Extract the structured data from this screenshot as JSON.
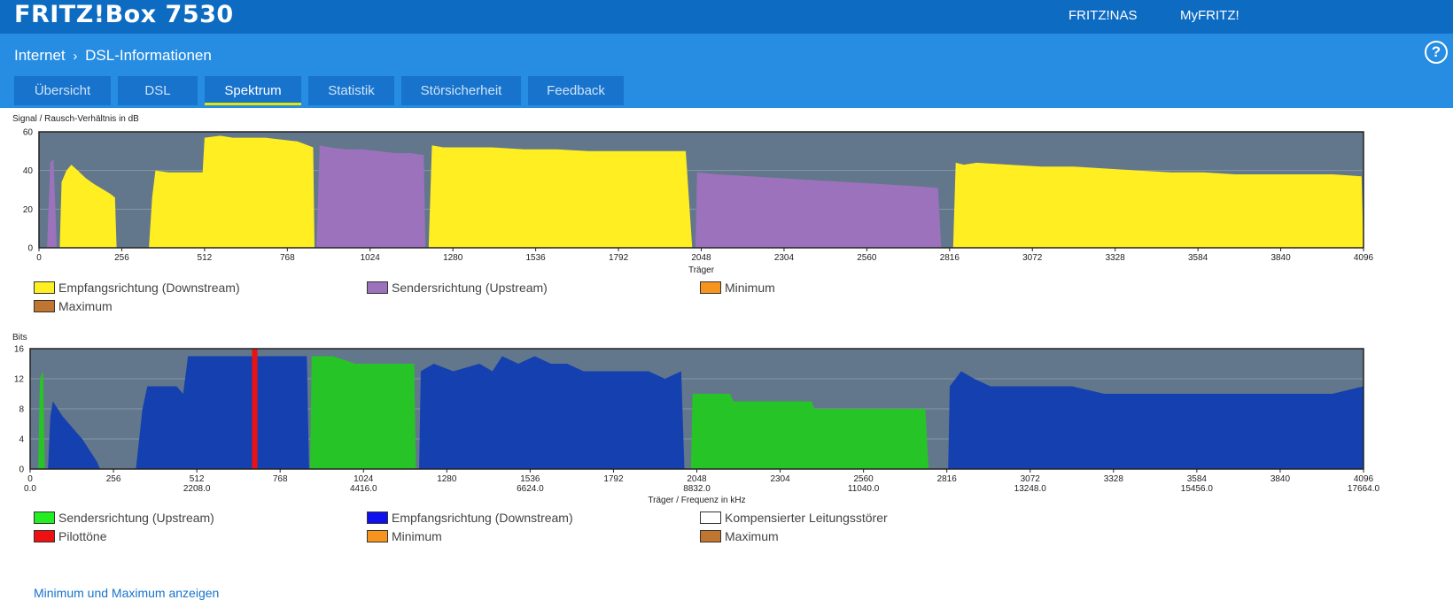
{
  "header": {
    "brand": "FRITZ!Box 7530",
    "links": [
      "FRITZ!NAS",
      "MyFRITZ!"
    ],
    "help": "?"
  },
  "breadcrumb": {
    "parent": "Internet",
    "separator": "›",
    "current": "DSL-Informationen"
  },
  "tabs": [
    {
      "label": "Übersicht",
      "active": false
    },
    {
      "label": "DSL",
      "active": false
    },
    {
      "label": "Spektrum",
      "active": true
    },
    {
      "label": "Statistik",
      "active": false
    },
    {
      "label": "Störsicherheit",
      "active": false
    },
    {
      "label": "Feedback",
      "active": false
    }
  ],
  "colors": {
    "plot_bg": "#62778b",
    "downstream": "#ffee22",
    "upstream": "#9b72bb",
    "bits_down": "#1540b0",
    "bits_up": "#27c427",
    "pilot": "#ee1111",
    "minimum": "#f7941d",
    "maximum": "#c07530",
    "accent": "#0d6bc2"
  },
  "chart_data": [
    {
      "type": "area",
      "ylabel": "Signal / Rausch-Verhältnis in dB",
      "xlabel": "Träger",
      "ylim": [
        0,
        60
      ],
      "xlim": [
        0,
        4096
      ],
      "yticks": [
        "0",
        "20",
        "40",
        "60"
      ],
      "xticks": [
        "0",
        "256",
        "512",
        "768",
        "1024",
        "1280",
        "1536",
        "1792",
        "2048",
        "2304",
        "2560",
        "2816",
        "3072",
        "3328",
        "3584",
        "3840",
        "4096"
      ],
      "legend": [
        "Empfangsrichtung (Downstream)",
        "Sendersrichtung (Upstream)",
        "Minimum",
        "Maximum"
      ],
      "series": [
        {
          "name": "Sendersrichtung (Upstream)",
          "color": "upstream",
          "segments": [
            [
              [
                25,
                0
              ],
              [
                35,
                44
              ],
              [
                45,
                46
              ],
              [
                55,
                0
              ]
            ],
            [
              [
                858,
                0
              ],
              [
                868,
                53
              ],
              [
                900,
                52
              ],
              [
                950,
                51
              ],
              [
                1000,
                51
              ],
              [
                1050,
                50
              ],
              [
                1100,
                49
              ],
              [
                1150,
                49
              ],
              [
                1190,
                48
              ],
              [
                1195,
                0
              ]
            ],
            [
              [
                2030,
                0
              ],
              [
                2035,
                39
              ],
              [
                2100,
                38
              ],
              [
                2200,
                37
              ],
              [
                2300,
                36
              ],
              [
                2400,
                35
              ],
              [
                2500,
                34
              ],
              [
                2600,
                33
              ],
              [
                2700,
                32
              ],
              [
                2780,
                31
              ],
              [
                2790,
                0
              ]
            ]
          ]
        },
        {
          "name": "Empfangsrichtung (Downstream)",
          "color": "downstream",
          "segments": [
            [
              [
                64,
                0
              ],
              [
                70,
                34
              ],
              [
                85,
                40
              ],
              [
                100,
                43
              ],
              [
                120,
                40
              ],
              [
                145,
                36
              ],
              [
                170,
                33
              ],
              [
                190,
                31
              ],
              [
                220,
                28
              ],
              [
                235,
                26
              ],
              [
                240,
                0
              ]
            ],
            [
              [
                340,
                0
              ],
              [
                350,
                26
              ],
              [
                360,
                40
              ],
              [
                400,
                39
              ],
              [
                450,
                39
              ],
              [
                506,
                39
              ],
              [
                512,
                57
              ],
              [
                560,
                58
              ],
              [
                600,
                57
              ],
              [
                650,
                57
              ],
              [
                700,
                57
              ],
              [
                750,
                56
              ],
              [
                800,
                55
              ],
              [
                848,
                52
              ],
              [
                852,
                0
              ]
            ],
            [
              [
                1205,
                0
              ],
              [
                1215,
                53
              ],
              [
                1250,
                52
              ],
              [
                1400,
                52
              ],
              [
                1500,
                51
              ],
              [
                1600,
                51
              ],
              [
                1700,
                50
              ],
              [
                1800,
                50
              ],
              [
                1900,
                50
              ],
              [
                1900,
                50
              ],
              [
                2000,
                50
              ],
              [
                2020,
                0
              ]
            ],
            [
              [
                2827,
                0
              ],
              [
                2835,
                44
              ],
              [
                2860,
                43
              ],
              [
                2900,
                44
              ],
              [
                3000,
                43
              ],
              [
                3100,
                42
              ],
              [
                3200,
                42
              ],
              [
                3300,
                41
              ],
              [
                3400,
                40
              ],
              [
                3500,
                39
              ],
              [
                3600,
                39
              ],
              [
                3700,
                38
              ],
              [
                3800,
                38
              ],
              [
                3900,
                38
              ],
              [
                4000,
                38
              ],
              [
                4090,
                37
              ],
              [
                4096,
                0
              ]
            ]
          ]
        }
      ]
    },
    {
      "type": "area",
      "ylabel": "Bits",
      "xlabel": "Träger / Frequenz in kHz",
      "ylim": [
        0,
        16
      ],
      "xlim": [
        0,
        4096
      ],
      "yticks": [
        "0",
        "4",
        "8",
        "12",
        "16"
      ],
      "xticks": [
        "0",
        "256",
        "512",
        "768",
        "1024",
        "1280",
        "1536",
        "1792",
        "2048",
        "2304",
        "2560",
        "2816",
        "3072",
        "3328",
        "3584",
        "3840",
        "4096"
      ],
      "freq_ticks": [
        {
          "at": 0,
          "label": "0.0"
        },
        {
          "at": 512,
          "label": "2208.0"
        },
        {
          "at": 1024,
          "label": "4416.0"
        },
        {
          "at": 1536,
          "label": "6624.0"
        },
        {
          "at": 2048,
          "label": "8832.0"
        },
        {
          "at": 2560,
          "label": "11040.0"
        },
        {
          "at": 3072,
          "label": "13248.0"
        },
        {
          "at": 3584,
          "label": "15456.0"
        },
        {
          "at": 4096,
          "label": "17664.0"
        }
      ],
      "legend": [
        "Sendersrichtung (Upstream)",
        "Empfangsrichtung (Downstream)",
        "Kompensierter Leitungsstörer",
        "Pilottöne",
        "Minimum",
        "Maximum"
      ],
      "pilot_carrier": 690,
      "series": [
        {
          "name": "Sendersrichtung (Upstream)",
          "color": "bits_up",
          "segments": [
            [
              [
                25,
                0
              ],
              [
                30,
                12
              ],
              [
                40,
                13
              ],
              [
                45,
                0
              ]
            ],
            [
              [
                860,
                0
              ],
              [
                865,
                15
              ],
              [
                930,
                15
              ],
              [
                1000,
                14
              ],
              [
                1100,
                14
              ],
              [
                1180,
                14
              ],
              [
                1185,
                0
              ]
            ],
            [
              [
                2030,
                0
              ],
              [
                2035,
                10
              ],
              [
                2150,
                10
              ],
              [
                2160,
                9
              ],
              [
                2400,
                9
              ],
              [
                2410,
                8
              ],
              [
                2750,
                8
              ],
              [
                2760,
                0
              ]
            ]
          ]
        },
        {
          "name": "Empfangsrichtung (Downstream)",
          "color": "bits_down",
          "segments": [
            [
              [
                55,
                0
              ],
              [
                62,
                7
              ],
              [
                70,
                9
              ],
              [
                85,
                8
              ],
              [
                100,
                7
              ],
              [
                120,
                6
              ],
              [
                140,
                5
              ],
              [
                160,
                4
              ],
              [
                175,
                3
              ],
              [
                190,
                2
              ],
              [
                205,
                1
              ],
              [
                215,
                0
              ]
            ],
            [
              [
                325,
                0
              ],
              [
                345,
                8
              ],
              [
                360,
                11
              ],
              [
                450,
                11
              ],
              [
                470,
                10
              ],
              [
                485,
                15
              ],
              [
                600,
                15
              ],
              [
                700,
                15
              ],
              [
                780,
                15
              ],
              [
                850,
                15
              ],
              [
                857,
                0
              ]
            ],
            [
              [
                1195,
                0
              ],
              [
                1200,
                13
              ],
              [
                1240,
                14
              ],
              [
                1300,
                13
              ],
              [
                1380,
                14
              ],
              [
                1420,
                13
              ],
              [
                1450,
                15
              ],
              [
                1500,
                14
              ],
              [
                1550,
                15
              ],
              [
                1600,
                14
              ],
              [
                1650,
                14
              ],
              [
                1700,
                13
              ],
              [
                1800,
                13
              ],
              [
                1900,
                13
              ],
              [
                1950,
                12
              ],
              [
                2000,
                13
              ],
              [
                2010,
                0
              ]
            ],
            [
              [
                2820,
                0
              ],
              [
                2825,
                11
              ],
              [
                2860,
                13
              ],
              [
                2900,
                12
              ],
              [
                2950,
                11
              ],
              [
                3100,
                11
              ],
              [
                3200,
                11
              ],
              [
                3300,
                10
              ],
              [
                3400,
                10
              ],
              [
                3500,
                10
              ],
              [
                3600,
                10
              ],
              [
                3700,
                10
              ],
              [
                3800,
                10
              ],
              [
                3900,
                10
              ],
              [
                4000,
                10
              ],
              [
                4096,
                11
              ],
              [
                4096,
                0
              ]
            ]
          ]
        }
      ]
    }
  ],
  "legend_colors": {
    "Empfangsrichtung (Downstream)": "downstream",
    "Sendersrichtung (Upstream)": "upstream",
    "Minimum": "minimum",
    "Maximum": "maximum",
    "Kompensierter Leitungsstörer": "#ffffff",
    "Pilottöne": "pilot"
  },
  "footer_link": "Minimum und Maximum anzeigen"
}
